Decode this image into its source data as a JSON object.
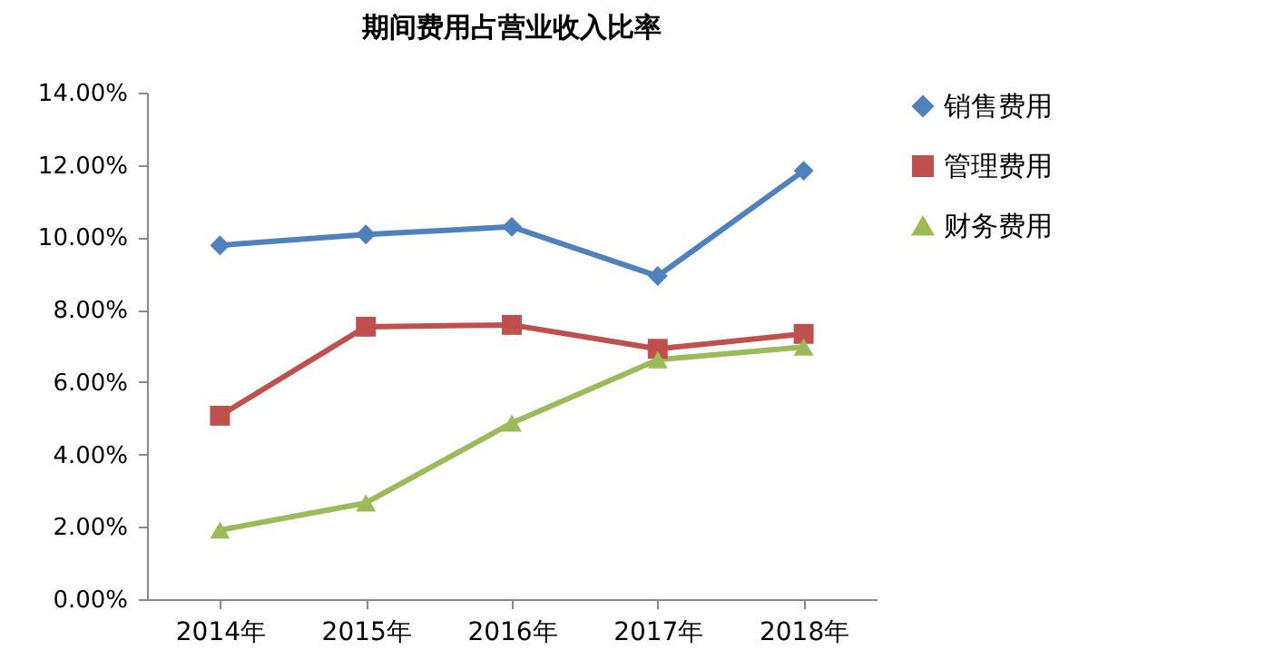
{
  "chart_data": {
    "type": "line",
    "title": "期间费用占营业收入比率",
    "categories": [
      "2014年",
      "2015年",
      "2016年",
      "2017年",
      "2018年"
    ],
    "series": [
      {
        "name": "销售费用",
        "color": "#4f81bd",
        "marker": "diamond",
        "values": [
          9.78,
          10.08,
          10.29,
          8.93,
          11.84
        ]
      },
      {
        "name": "管理费用",
        "color": "#c0504d",
        "marker": "square",
        "values": [
          5.07,
          7.53,
          7.58,
          6.92,
          7.33
        ]
      },
      {
        "name": "财务费用",
        "color": "#9bbb59",
        "marker": "triangle",
        "values": [
          1.91,
          2.66,
          4.87,
          6.62,
          6.97
        ]
      }
    ],
    "ylim": [
      0,
      14
    ],
    "yticks": [
      {
        "value": 0,
        "label": "0.00%"
      },
      {
        "value": 2,
        "label": "2.00%"
      },
      {
        "value": 4,
        "label": "4.00%"
      },
      {
        "value": 6,
        "label": "6.00%"
      },
      {
        "value": 8,
        "label": "8.00%"
      },
      {
        "value": 10,
        "label": "10.00%"
      },
      {
        "value": 12,
        "label": "12.00%"
      },
      {
        "value": 14,
        "label": "14.00%"
      }
    ],
    "grid": false,
    "legend": "right",
    "line_style": "solid"
  }
}
